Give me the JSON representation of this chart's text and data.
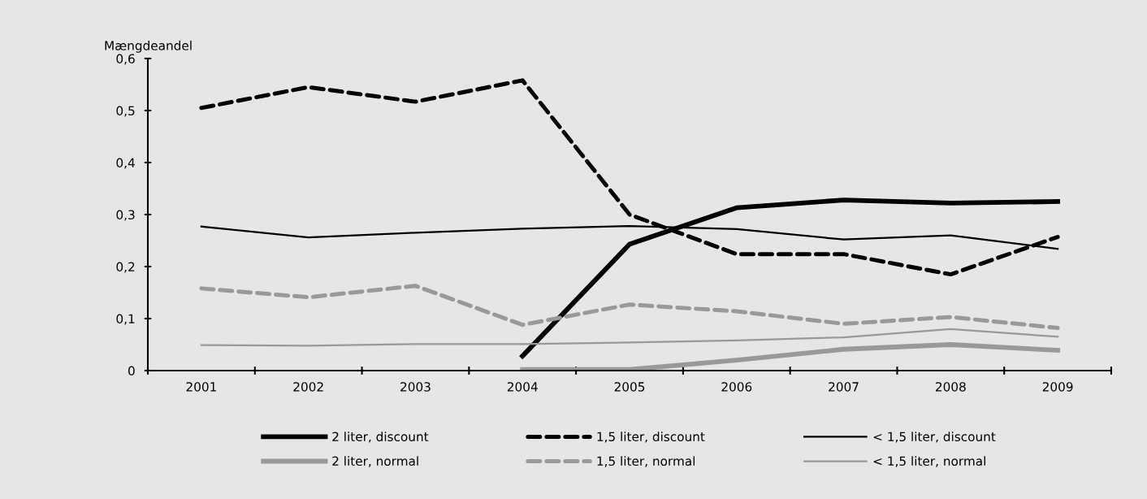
{
  "chart_data": {
    "type": "line",
    "ylabel": "Mængdeandel",
    "categories": [
      "2001",
      "2002",
      "2003",
      "2004",
      "2005",
      "2006",
      "2007",
      "2008",
      "2009"
    ],
    "ylim": [
      0,
      0.6
    ],
    "yticks": [
      {
        "value": 0,
        "label": "0"
      },
      {
        "value": 0.1,
        "label": "0,1"
      },
      {
        "value": 0.2,
        "label": "0,2"
      },
      {
        "value": 0.3,
        "label": "0,3"
      },
      {
        "value": 0.4,
        "label": "0,4"
      },
      {
        "value": 0.5,
        "label": "0,5"
      },
      {
        "value": 0.6,
        "label": "0,6"
      }
    ],
    "grid": false,
    "legend": "bottom",
    "marker": "none",
    "series": [
      {
        "name": "2 liter, discount",
        "color": "#000000",
        "line_style": "solid",
        "values": [
          null,
          null,
          null,
          0.028,
          0.243,
          0.313,
          0.328,
          0.322,
          0.325
        ]
      },
      {
        "name": "1,5 liter, discount",
        "color": "#000000",
        "line_style": "dashed",
        "values": [
          0.505,
          0.545,
          0.517,
          0.558,
          0.3,
          0.224,
          0.224,
          0.185,
          0.257
        ]
      },
      {
        "name": "< 1,5 liter, discount",
        "color": "#000000",
        "line_style": "solid",
        "values": [
          0.277,
          0.256,
          0.265,
          0.273,
          0.278,
          0.272,
          0.252,
          0.26,
          0.234
        ]
      },
      {
        "name": "2 liter, normal",
        "color": "#999999",
        "line_style": "solid",
        "values": [
          null,
          null,
          null,
          0.002,
          0.002,
          0.02,
          0.041,
          0.05,
          0.039
        ]
      },
      {
        "name": "1,5 liter, normal",
        "color": "#999999",
        "line_style": "dashed",
        "values": [
          0.158,
          0.141,
          0.163,
          0.088,
          0.127,
          0.114,
          0.09,
          0.103,
          0.082
        ]
      },
      {
        "name": "< 1,5 liter, normal",
        "color": "#999999",
        "line_style": "solid",
        "values": [
          0.049,
          0.048,
          0.051,
          0.051,
          0.054,
          0.058,
          0.064,
          0.08,
          0.065
        ]
      }
    ]
  }
}
